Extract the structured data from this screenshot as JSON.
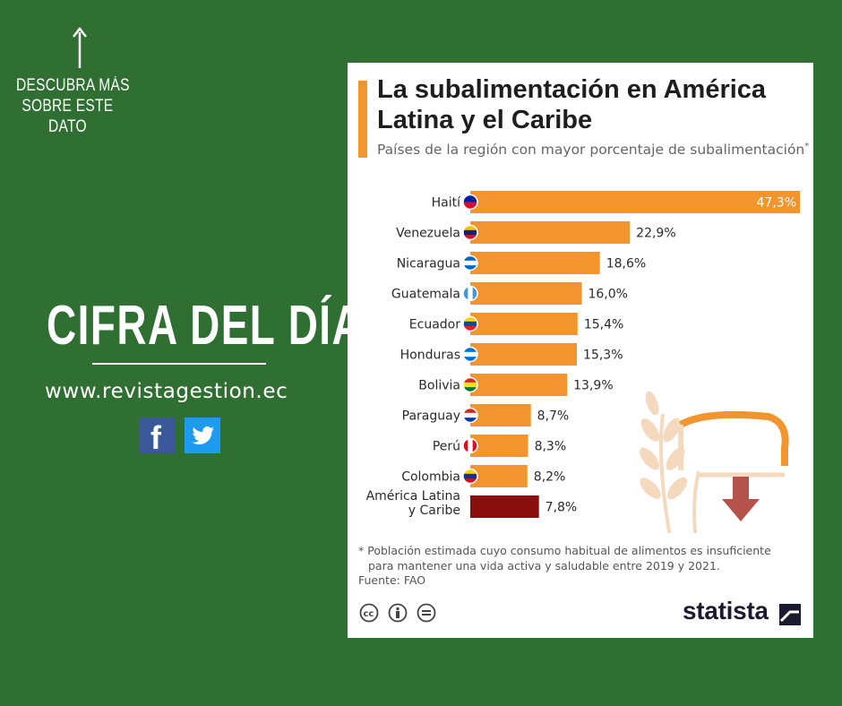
{
  "promo": {
    "cta_lines": [
      "DESCUBRA MÁS",
      "SOBRE ESTE",
      "DATO"
    ],
    "headline": "CIFRA DEL DÍA",
    "website": "www.revistagestion.ec",
    "social": [
      {
        "icon": "facebook-icon",
        "label": "f",
        "color": "#3b5998"
      },
      {
        "icon": "twitter-icon",
        "label": "twitter",
        "color": "#1d9bf0"
      }
    ]
  },
  "card": {
    "source_label": "Fuente: FAO",
    "footnote_lines": [
      "* Población estimada cuyo consumo habitual de alimentos es insuficiente",
      "para mantener una vida activa y saludable entre 2019 y 2021."
    ],
    "brand": "statista",
    "license_icons": [
      "creative-commons-icon",
      "attribution-icon",
      "no-derivatives-icon"
    ],
    "decor_icons": [
      "wheat-icon",
      "down-arrow-icon"
    ]
  },
  "chart_data": {
    "type": "bar",
    "orientation": "horizontal",
    "title": "La subalimentación en América Latina y el Caribe",
    "subtitle": "Países de la región con mayor porcentaje de subalimentación",
    "subtitle_marker": "*",
    "unit": "%",
    "decimal_separator": ",",
    "xlim": [
      0,
      47.3
    ],
    "categories": [
      "Haití",
      "Venezuela",
      "Nicaragua",
      "Guatemala",
      "Ecuador",
      "Honduras",
      "Bolivia",
      "Paraguay",
      "Perú",
      "Colombia",
      "América Latina y Caribe"
    ],
    "category_lines": [
      [
        "Haití"
      ],
      [
        "Venezuela"
      ],
      [
        "Nicaragua"
      ],
      [
        "Guatemala"
      ],
      [
        "Ecuador"
      ],
      [
        "Honduras"
      ],
      [
        "Bolivia"
      ],
      [
        "Paraguay"
      ],
      [
        "Perú"
      ],
      [
        "Colombia"
      ],
      [
        "América Latina",
        "y Caribe"
      ]
    ],
    "values": [
      47.3,
      22.9,
      18.6,
      16.0,
      15.4,
      15.3,
      13.9,
      8.7,
      8.3,
      8.2,
      7.8
    ],
    "value_labels": [
      "47,3%",
      "22,9%",
      "18,6%",
      "16,0%",
      "15,4%",
      "15,3%",
      "13,9%",
      "8,7%",
      "8,3%",
      "8,2%",
      "7,8%"
    ],
    "flags": [
      "haiti-flag-icon",
      "venezuela-flag-icon",
      "nicaragua-flag-icon",
      "guatemala-flag-icon",
      "ecuador-flag-icon",
      "honduras-flag-icon",
      "bolivia-flag-icon",
      "paraguay-flag-icon",
      "peru-flag-icon",
      "colombia-flag-icon",
      null
    ],
    "colors": {
      "bar": "#f2952f",
      "aggregate_bar": "#8b0e0e",
      "label_text": "#2a2a2a",
      "inside_label": "#ffffff"
    },
    "highlight_index": 10,
    "grid": false
  }
}
